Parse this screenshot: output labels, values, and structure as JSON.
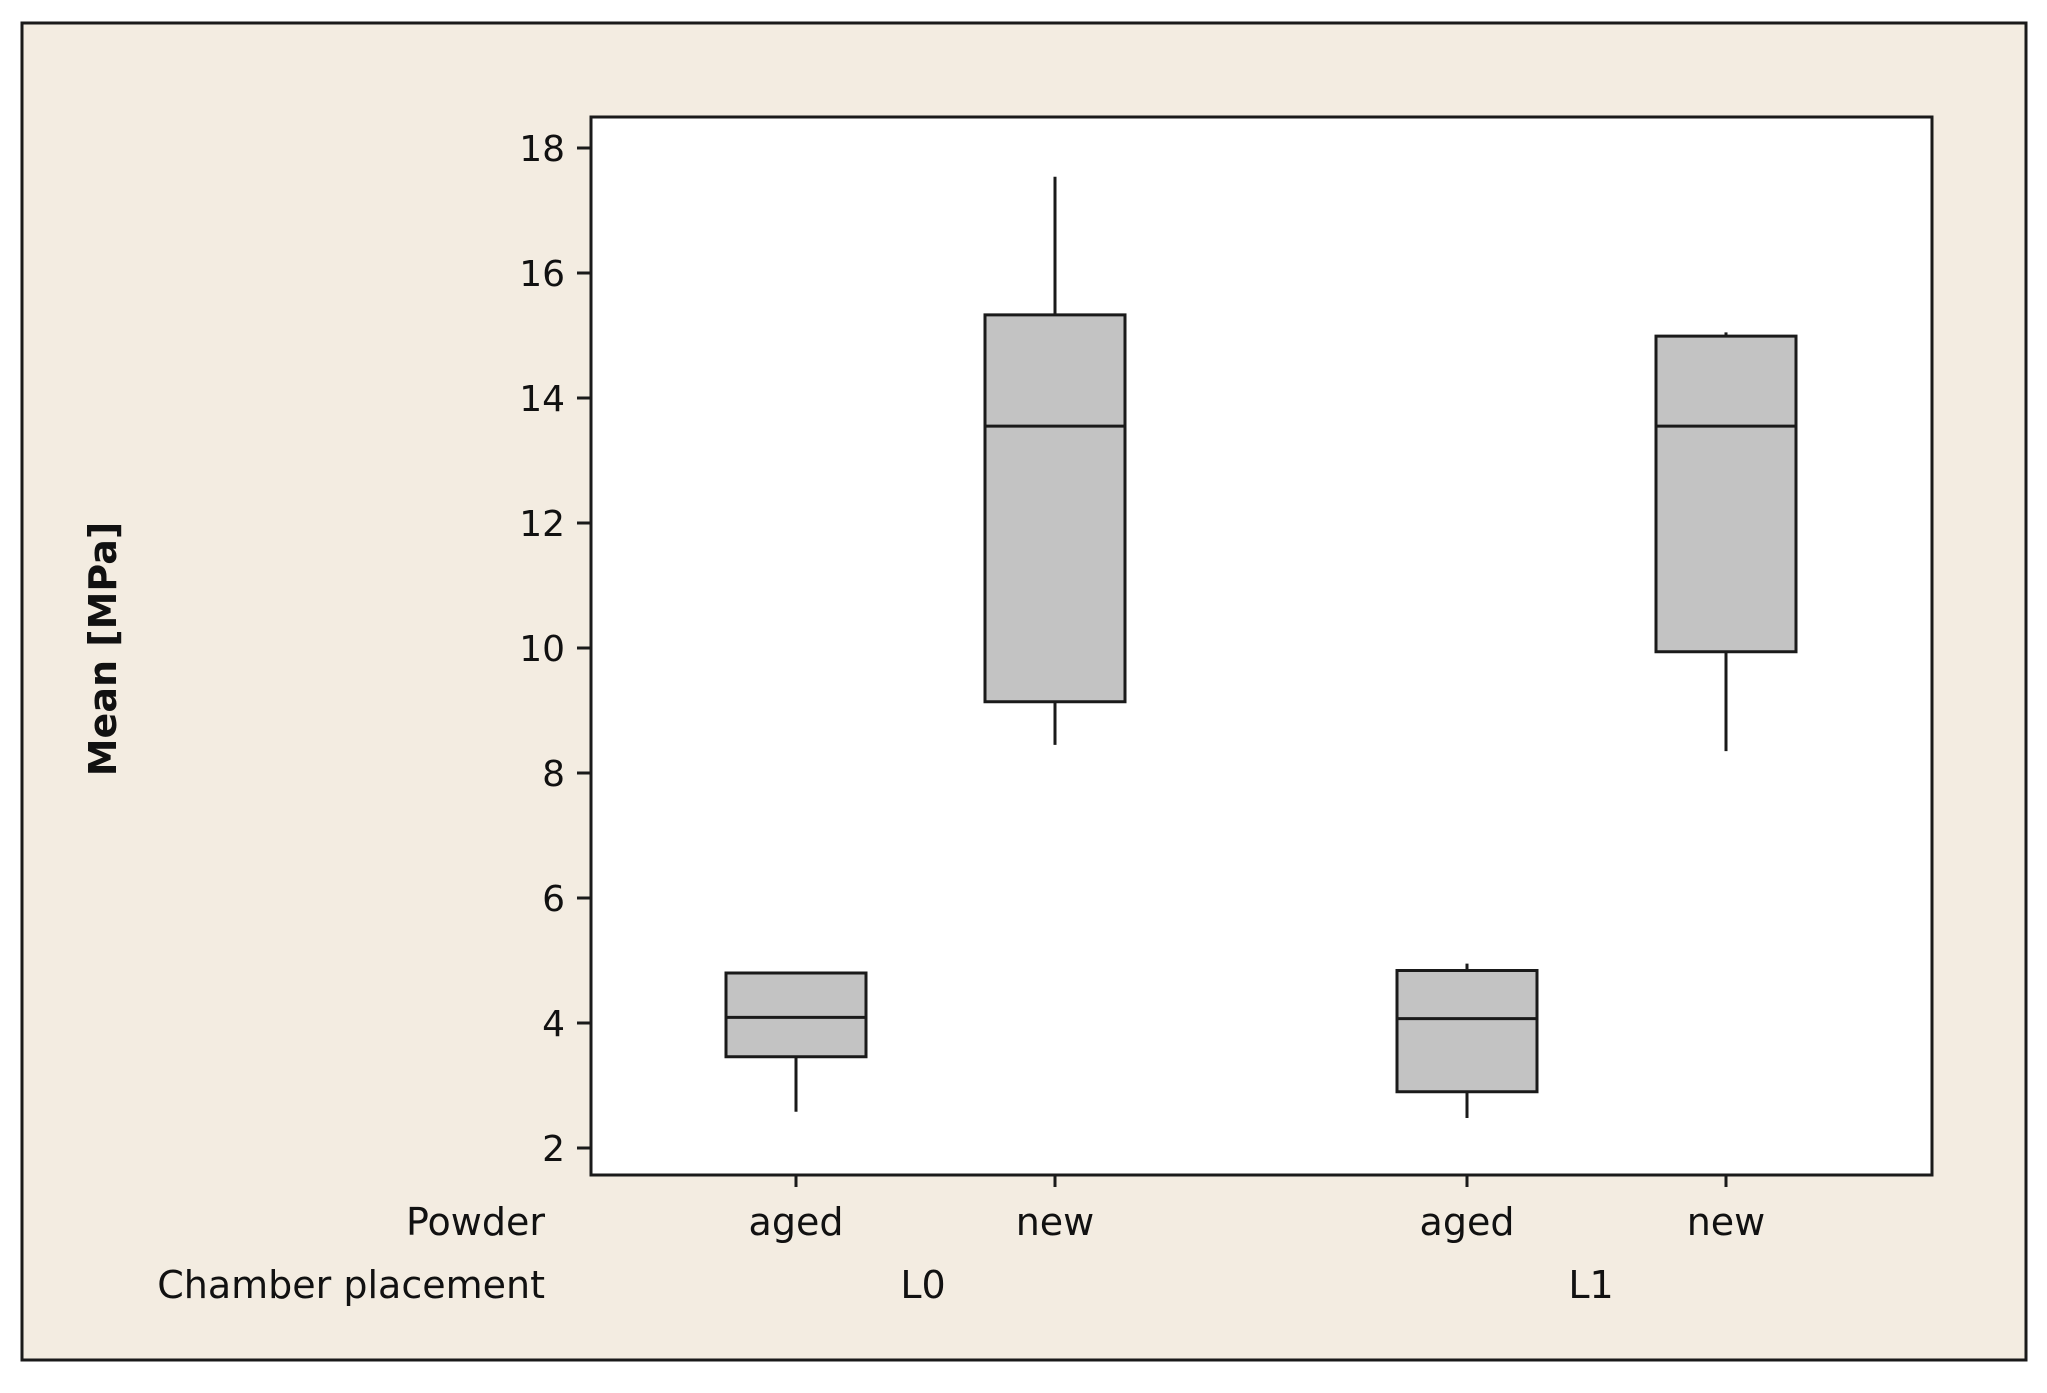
{
  "colors": {
    "background": "#f3ece1",
    "plot_background": "#ffffff",
    "box_fill": "#c3c3c3",
    "line": "#1a1a1a"
  },
  "chart_data": {
    "type": "boxplot",
    "title": "",
    "ylabel": "Mean [MPa]",
    "ylim": [
      1.6,
      18.5
    ],
    "yticks": [
      2,
      4,
      6,
      8,
      10,
      12,
      14,
      16,
      18
    ],
    "grid": false,
    "x_factor_labels": [
      "Powder",
      "Chamber placement"
    ],
    "groups": [
      {
        "label": "L0",
        "categories": [
          "aged",
          "new"
        ]
      },
      {
        "label": "L1",
        "categories": [
          "aged",
          "new"
        ]
      }
    ],
    "boxes": [
      {
        "powder": "aged",
        "placement": "L0",
        "min": 2.58,
        "q1": 3.46,
        "median": 4.09,
        "q3": 4.8,
        "max": 4.8
      },
      {
        "powder": "new",
        "placement": "L0",
        "min": 8.45,
        "q1": 9.14,
        "median": 13.55,
        "q3": 15.33,
        "max": 17.54
      },
      {
        "powder": "aged",
        "placement": "L1",
        "min": 2.48,
        "q1": 2.9,
        "median": 4.07,
        "q3": 4.84,
        "max": 4.95
      },
      {
        "powder": "new",
        "placement": "L1",
        "min": 8.35,
        "q1": 9.94,
        "median": 13.55,
        "q3": 14.99,
        "max": 15.05
      }
    ]
  }
}
